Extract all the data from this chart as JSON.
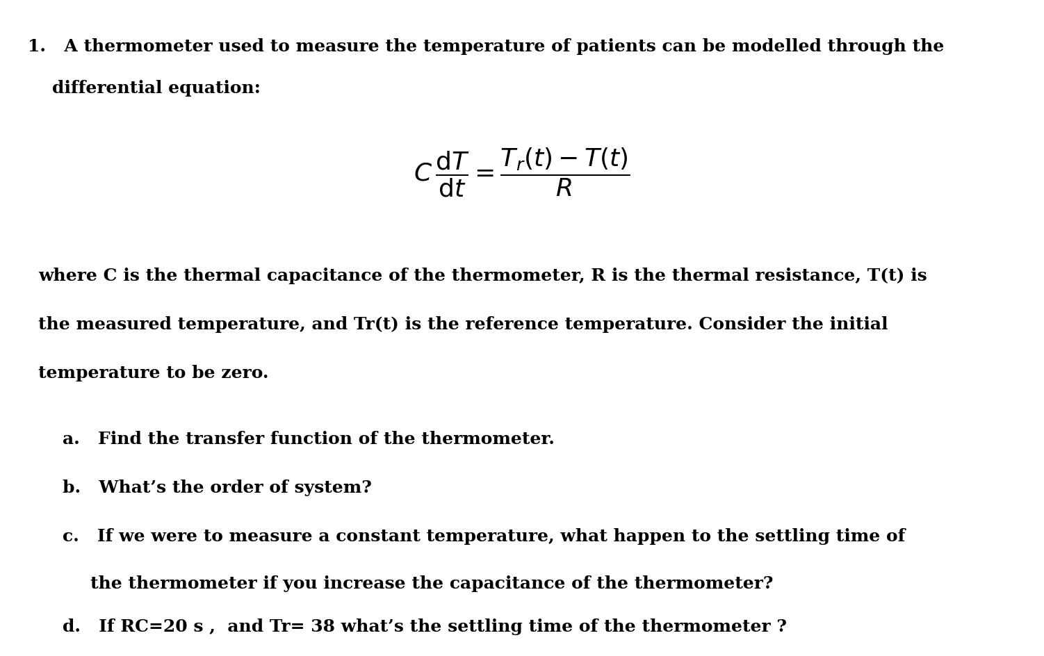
{
  "bg_color": "#ffffff",
  "text_color": "#000000",
  "figsize": [
    15.02,
    9.44
  ],
  "dpi": 100,
  "line1": "1.   A thermometer used to measure the temperature of patients can be modelled through the",
  "line2": "differential equation:",
  "para1_line1": "where C is the thermal capacitance of the thermometer, R is the thermal resistance, T(t) is",
  "para1_line2": "the measured temperature, and Tr(t) is the reference temperature. Consider the initial",
  "para1_line3": "temperature to be zero.",
  "item_a": "a.   Find the transfer function of the thermometer.",
  "item_b": "b.   What’s the order of system?",
  "item_c_line1": "c.   If we were to measure a constant temperature, what happen to the settling time of",
  "item_c_line2": "the thermometer if you increase the capacitance of the thermometer?",
  "item_d": "d.   If RC=20 s ,  and Tr= 38 what’s the settling time of the thermometer ?"
}
